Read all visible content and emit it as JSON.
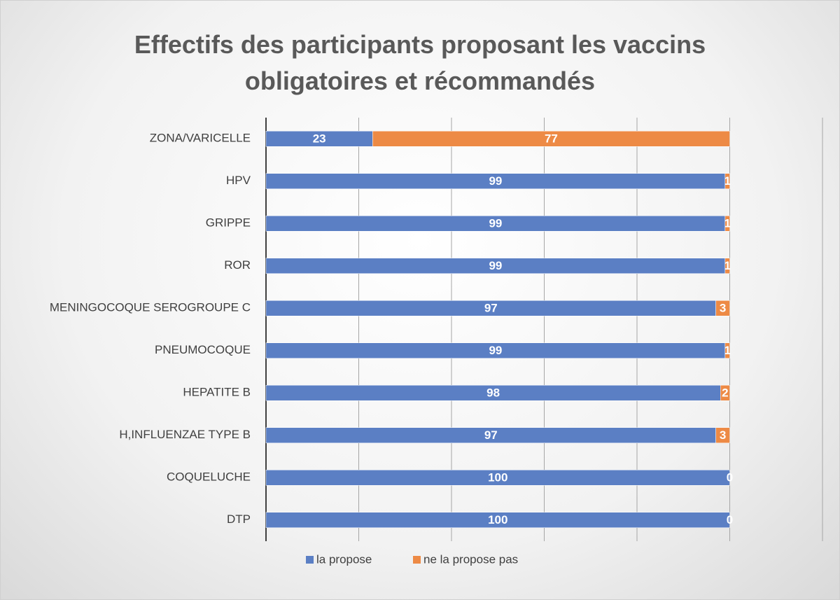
{
  "chart_data": {
    "type": "stacked_barh",
    "title": "Effectifs des participants proposant les vaccins obligatoires et récommandés",
    "categories": [
      "ZONA/VARICELLE",
      "HPV",
      "GRIPPE",
      "ROR",
      "MENINGOCOQUE SEROGROUPE C",
      "PNEUMOCOQUE",
      "HEPATITE B",
      "H,INFLUENZAE TYPE B",
      "COQUELUCHE",
      "DTP"
    ],
    "series": [
      {
        "name": "la propose",
        "color": "#5b7fc4",
        "values": [
          23,
          99,
          99,
          99,
          97,
          99,
          98,
          97,
          100,
          100
        ]
      },
      {
        "name": "ne la propose pas",
        "color": "#ed8a45",
        "values": [
          77,
          1,
          1,
          1,
          3,
          1,
          2,
          3,
          0,
          0
        ]
      }
    ],
    "xlim": [
      0,
      120
    ],
    "xticks": [
      0,
      20,
      40,
      60,
      80,
      100,
      120
    ],
    "grid": true,
    "legend": "bottom"
  }
}
